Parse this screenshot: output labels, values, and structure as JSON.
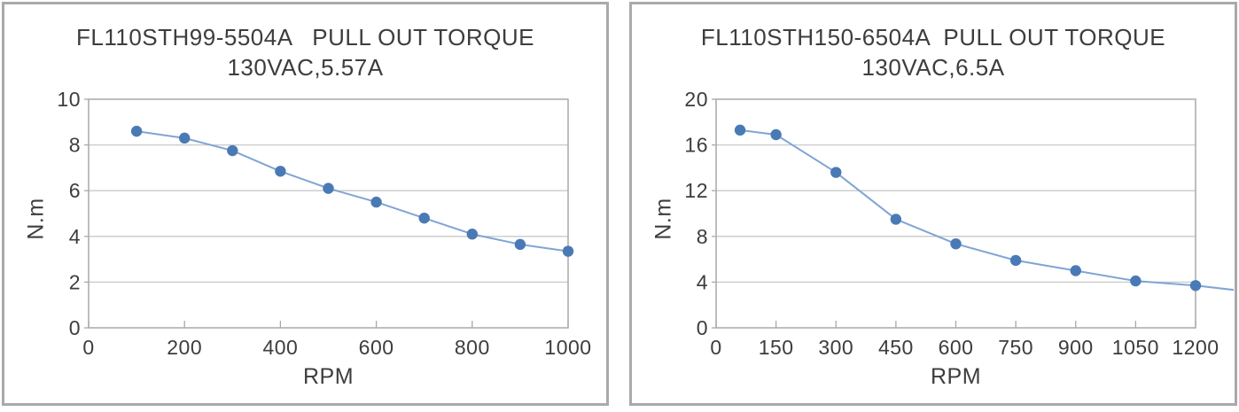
{
  "colors": {
    "background": "#ffffff",
    "panel_border": "#a9a9a9",
    "axis": "#a9a9a9",
    "grid": "#c9c9c9",
    "series_line": "#7fa5d5",
    "marker": "#4a7ab5",
    "text": "#3d3d3d"
  },
  "chart_data": [
    {
      "type": "line",
      "title": "FL110STH99-5504A   PULL OUT TORQUE",
      "subtitle": "130VAC,5.57A",
      "xlabel": "RPM",
      "ylabel": "N.m",
      "legend": "none",
      "grid": "horizontal",
      "xlim": [
        0,
        1000
      ],
      "ylim": [
        0,
        10
      ],
      "xticks": [
        0,
        200,
        400,
        600,
        800,
        1000
      ],
      "yticks": [
        0,
        2,
        4,
        6,
        8,
        10
      ],
      "x": [
        100,
        200,
        300,
        400,
        500,
        600,
        700,
        800,
        900,
        1000
      ],
      "values": [
        8.6,
        8.3,
        7.75,
        6.85,
        6.1,
        5.5,
        4.8,
        4.1,
        3.65,
        3.35
      ]
    },
    {
      "type": "line",
      "title": "FL110STH150-6504A  PULL OUT TORQUE",
      "subtitle": "130VAC,6.5A",
      "xlabel": "RPM",
      "ylabel": "N.m",
      "legend": "none",
      "grid": "horizontal",
      "xlim": [
        0,
        1200
      ],
      "ylim": [
        0,
        20
      ],
      "xticks": [
        0,
        150,
        300,
        450,
        600,
        750,
        900,
        1050,
        1200
      ],
      "yticks": [
        0,
        4,
        8,
        12,
        16,
        20
      ],
      "x": [
        60,
        150,
        300,
        450,
        600,
        750,
        900,
        1050,
        1200
      ],
      "values": [
        17.3,
        16.9,
        13.6,
        9.5,
        7.35,
        5.9,
        5.0,
        4.1,
        3.7
      ],
      "overflow_point": {
        "x": 1300,
        "y": 3.3
      }
    }
  ]
}
